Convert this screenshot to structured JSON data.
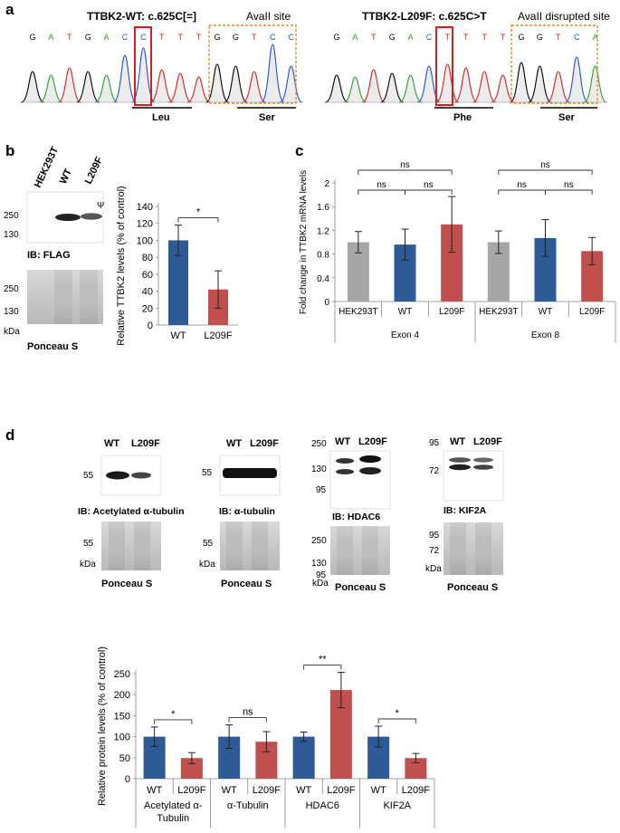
{
  "colors": {
    "wt": "#2e5b95",
    "l209f": "#c0504d",
    "hek": "#a6a6a6",
    "base_a": "#2ca02c",
    "base_c": "#1f4fd1",
    "base_g": "#000000",
    "base_t": "#d62020"
  },
  "panel_a": {
    "letter": "a",
    "wt": {
      "title": "TTBK2-WT: c.625C[=]",
      "site_label": "AvaII site",
      "bases": [
        "G",
        "A",
        "T",
        "G",
        "A",
        "C",
        "C",
        "T",
        "T",
        "T",
        "G",
        "G",
        "T",
        "C",
        "C"
      ],
      "codon1": "Leu",
      "codon2": "Ser"
    },
    "mut": {
      "title": "TTBK2-L209F: c.625C>T",
      "site_label": "AvaII disrupted site",
      "bases": [
        "G",
        "A",
        "T",
        "G",
        "A",
        "C",
        "T",
        "T",
        "T",
        "T",
        "G",
        "G",
        "T",
        "C",
        "A"
      ],
      "codon1": "Phe",
      "codon2": "Ser"
    }
  },
  "panel_b": {
    "letter": "b",
    "blot": {
      "lanes": [
        "HEK293T",
        "WT",
        "L209F"
      ],
      "psi": "Ψ",
      "markers_flag": [
        "250",
        "130"
      ],
      "markers_ponceau": [
        "250",
        "130"
      ],
      "kda": "kDa",
      "ib_label": "IB: FLAG",
      "ponceau_label": "Ponceau S"
    }
  },
  "panel_c": {
    "letter": "c"
  },
  "panel_d": {
    "letter": "d",
    "lane_wt": "WT",
    "lane_l209f": "L209F",
    "kda": "kDa",
    "ponceau_label": "Ponceau S",
    "ib_labels": [
      "IB: Acetylated α-tubulin",
      "IB: α-tubulin",
      "IB: HDAC6",
      "IB: KIF2A"
    ],
    "markers": {
      "acet": [
        "55"
      ],
      "atub": [
        "55"
      ],
      "hdac": [
        "250",
        "130",
        "95"
      ],
      "kif": [
        "95",
        "72"
      ]
    }
  },
  "chart_data": [
    {
      "id": "b",
      "type": "bar",
      "ylabel": "Relative TTBK2 levels (% of control)",
      "ylim": [
        0,
        140
      ],
      "yticks": [
        "0",
        "20",
        "40",
        "60",
        "80",
        "100",
        "120",
        "140"
      ],
      "categories": [
        "WT",
        "L209F"
      ],
      "values": [
        100,
        42
      ],
      "errors": [
        18,
        22
      ],
      "significance": [
        {
          "pair": [
            0,
            1
          ],
          "label": "*"
        }
      ]
    },
    {
      "id": "c",
      "type": "bar",
      "ylabel": "Fold change in TTBK2 mRNA levels",
      "ylim": [
        0,
        2
      ],
      "yticks": [
        "0",
        "0.4",
        "0.8",
        "1.2",
        "1.6",
        "2"
      ],
      "groups": [
        "Exon 4",
        "Exon 8"
      ],
      "categories": [
        "HEK293T",
        "WT",
        "L209F",
        "HEK293T",
        "WT",
        "L209F"
      ],
      "values": [
        1.0,
        0.96,
        1.3,
        1.0,
        1.07,
        0.85
      ],
      "errors": [
        0.18,
        0.26,
        0.47,
        0.19,
        0.31,
        0.23
      ],
      "significance": [
        {
          "pair": [
            0,
            1
          ],
          "label": "ns",
          "level": 1
        },
        {
          "pair": [
            1,
            2
          ],
          "label": "ns",
          "level": 1
        },
        {
          "pair": [
            0,
            2
          ],
          "label": "ns",
          "level": 2
        },
        {
          "pair": [
            3,
            4
          ],
          "label": "ns",
          "level": 1
        },
        {
          "pair": [
            4,
            5
          ],
          "label": "ns",
          "level": 1
        },
        {
          "pair": [
            3,
            5
          ],
          "label": "ns",
          "level": 2
        }
      ]
    },
    {
      "id": "d",
      "type": "bar",
      "ylabel": "Relative protein levels (% of control)",
      "ylim": [
        0,
        250
      ],
      "yticks": [
        "0",
        "50",
        "100",
        "150",
        "200",
        "250"
      ],
      "groups": [
        "Acetylated α-Tubulin",
        "α-Tubulin",
        "HDAC6",
        "KIF2A"
      ],
      "categories": [
        "WT",
        "L209F",
        "WT",
        "L209F",
        "WT",
        "L209F",
        "WT",
        "L209F"
      ],
      "values": [
        100,
        49,
        100,
        88,
        100,
        211,
        100,
        49
      ],
      "errors": [
        23,
        13,
        28,
        24,
        11,
        42,
        25,
        11
      ],
      "significance": [
        {
          "pair": [
            0,
            1
          ],
          "label": "*"
        },
        {
          "pair": [
            2,
            3
          ],
          "label": "ns"
        },
        {
          "pair": [
            4,
            5
          ],
          "label": "**"
        },
        {
          "pair": [
            6,
            7
          ],
          "label": "*"
        }
      ]
    }
  ]
}
